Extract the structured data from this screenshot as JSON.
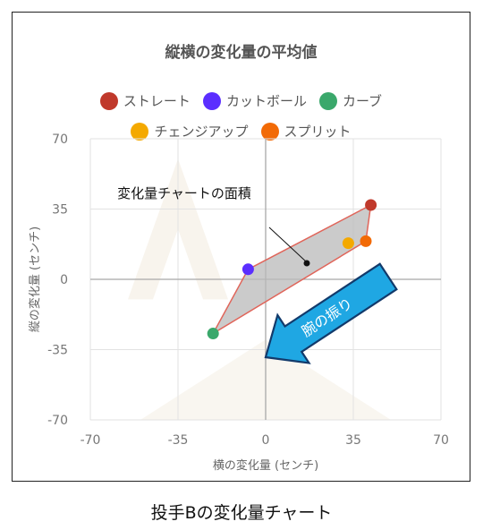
{
  "chart_data": {
    "type": "scatter",
    "title": "縦横の変化量の平均値",
    "xlabel": "横の変化量 (センチ)",
    "ylabel": "縦の変化量 (センチ)",
    "xlim": [
      -70,
      70
    ],
    "ylim": [
      -70,
      70
    ],
    "xticks": [
      -70,
      -35,
      0,
      35,
      70
    ],
    "yticks": [
      70,
      35,
      0,
      -35,
      -70
    ],
    "grid": true,
    "legend_position": "top",
    "series": [
      {
        "name": "ストレート",
        "color": "#c0392b",
        "x": 42,
        "y": 37
      },
      {
        "name": "カットボール",
        "color": "#5b2eff",
        "x": -7,
        "y": 5
      },
      {
        "name": "カーブ",
        "color": "#3aa86b",
        "x": -21,
        "y": -27
      },
      {
        "name": "チェンジアップ",
        "color": "#f4a900",
        "x": 33,
        "y": 18
      },
      {
        "name": "スプリット",
        "color": "#f26a06",
        "x": 40,
        "y": 19
      }
    ],
    "polygon_order": [
      0,
      4,
      2,
      1
    ],
    "annotation": "変化量チャートの面積",
    "arrow_label": "腕の振り"
  },
  "caption": "投手Bの変化量チャート"
}
